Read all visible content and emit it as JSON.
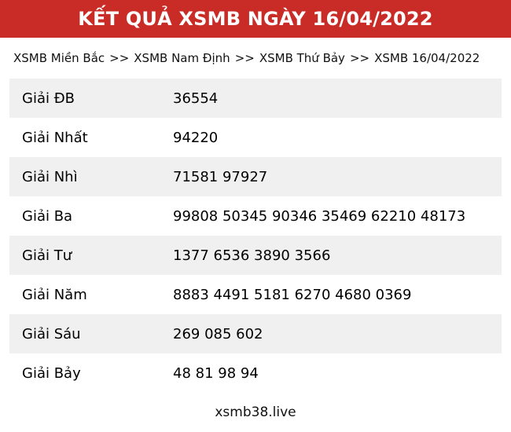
{
  "header": {
    "title": "KẾT QUẢ XSMB NGÀY 16/04/2022",
    "bg_color": "#c92b27",
    "text_color": "#ffffff"
  },
  "breadcrumb": {
    "separator": ">>",
    "items": [
      "XSMB Miền Bắc",
      "XSMB Nam Định",
      "XSMB Thứ Bảy",
      "XSMB 16/04/2022"
    ]
  },
  "results_table": {
    "stripe_color": "#f0f0f0",
    "rows": [
      {
        "label": "Giải ĐB",
        "value": "36554"
      },
      {
        "label": "Giải Nhất",
        "value": "94220"
      },
      {
        "label": "Giải Nhì",
        "value": "71581 97927"
      },
      {
        "label": "Giải Ba",
        "value": "99808 50345 90346 35469 62210 48173"
      },
      {
        "label": "Giải Tư",
        "value": "1377 6536 3890 3566"
      },
      {
        "label": "Giải Năm",
        "value": "8883 4491 5181 6270 4680 0369"
      },
      {
        "label": "Giải Sáu",
        "value": "269 085 602"
      },
      {
        "label": "Giải Bảy",
        "value": "48 81 98 94"
      }
    ]
  },
  "footer": {
    "site_name": "xsmb38.live"
  }
}
